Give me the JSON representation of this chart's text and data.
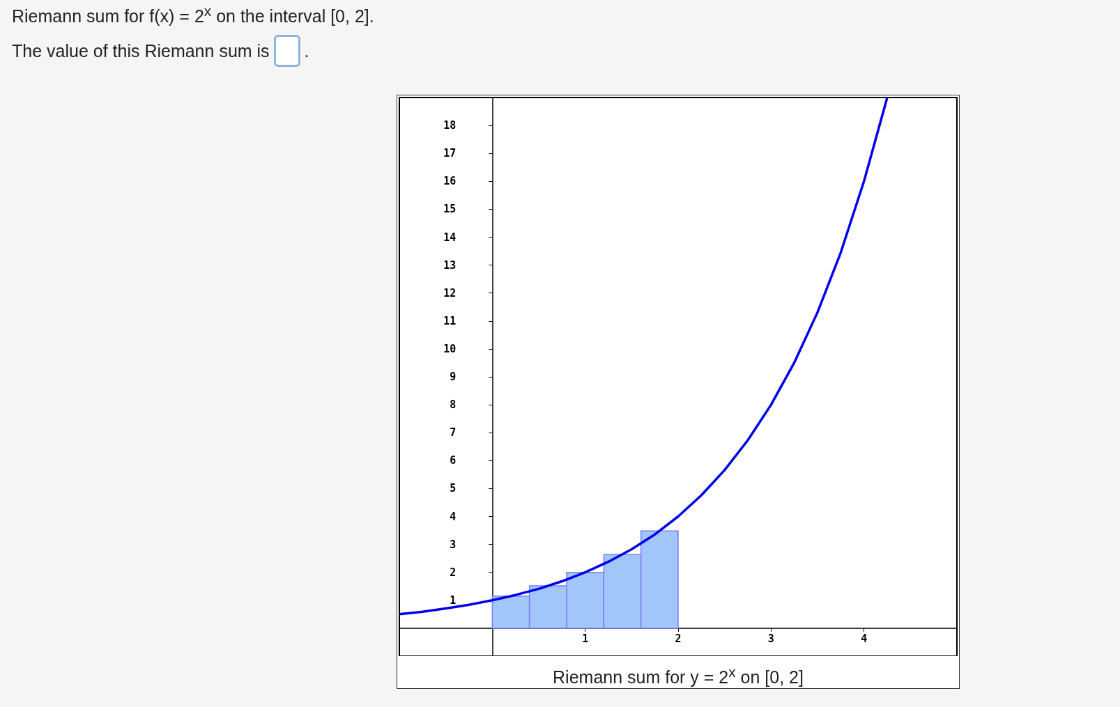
{
  "chart_data": {
    "type": "histogram",
    "annotations": [
      "."
    ],
    "title": "Riemann sum for f(x) = 2$^{x}$ on the interval [0, 2].",
    "subtitle": "The value of this Riemann sum is",
    "xlabel": "Riemann sum for y = 2$^{x}$ on [0, 2]",
    "xlim": [
      -1,
      5
    ],
    "xticks": [
      1,
      2,
      3,
      4
    ],
    "ylim": [
      -1,
      19
    ],
    "yticks": [
      1,
      2,
      3,
      4,
      5,
      6,
      7,
      8,
      9,
      10,
      11,
      12,
      13,
      14,
      15,
      16,
      17,
      18,
      {
        "value": 19,
        "label": null
      }
    ],
    "grid": false,
    "series": [
      {
        "color": "#a0c6fa",
        "bins": [
          0,
          0.4,
          0.8,
          1.2,
          1.6,
          2.0
        ],
        "values": [
          1.15,
          1.52,
          2,
          2.64,
          3.48
        ]
      },
      {
        "type": "line",
        "color": "#0000ee",
        "marker": "none",
        "x": [
          -1,
          -0.75,
          -0.5,
          -0.25,
          0,
          0.25,
          0.5,
          0.75,
          1,
          1.25,
          1.5,
          1.75,
          2,
          2.25,
          2.5,
          2.75,
          3,
          3.25,
          3.5,
          3.75,
          4,
          4.25
        ],
        "values": [
          0.5,
          0.59,
          0.71,
          0.84,
          1,
          1.19,
          1.41,
          1.68,
          2,
          2.38,
          2.83,
          3.36,
          4,
          4.76,
          5.66,
          6.73,
          8,
          9.51,
          11.31,
          13.45,
          16,
          19
        ]
      }
    ]
  }
}
